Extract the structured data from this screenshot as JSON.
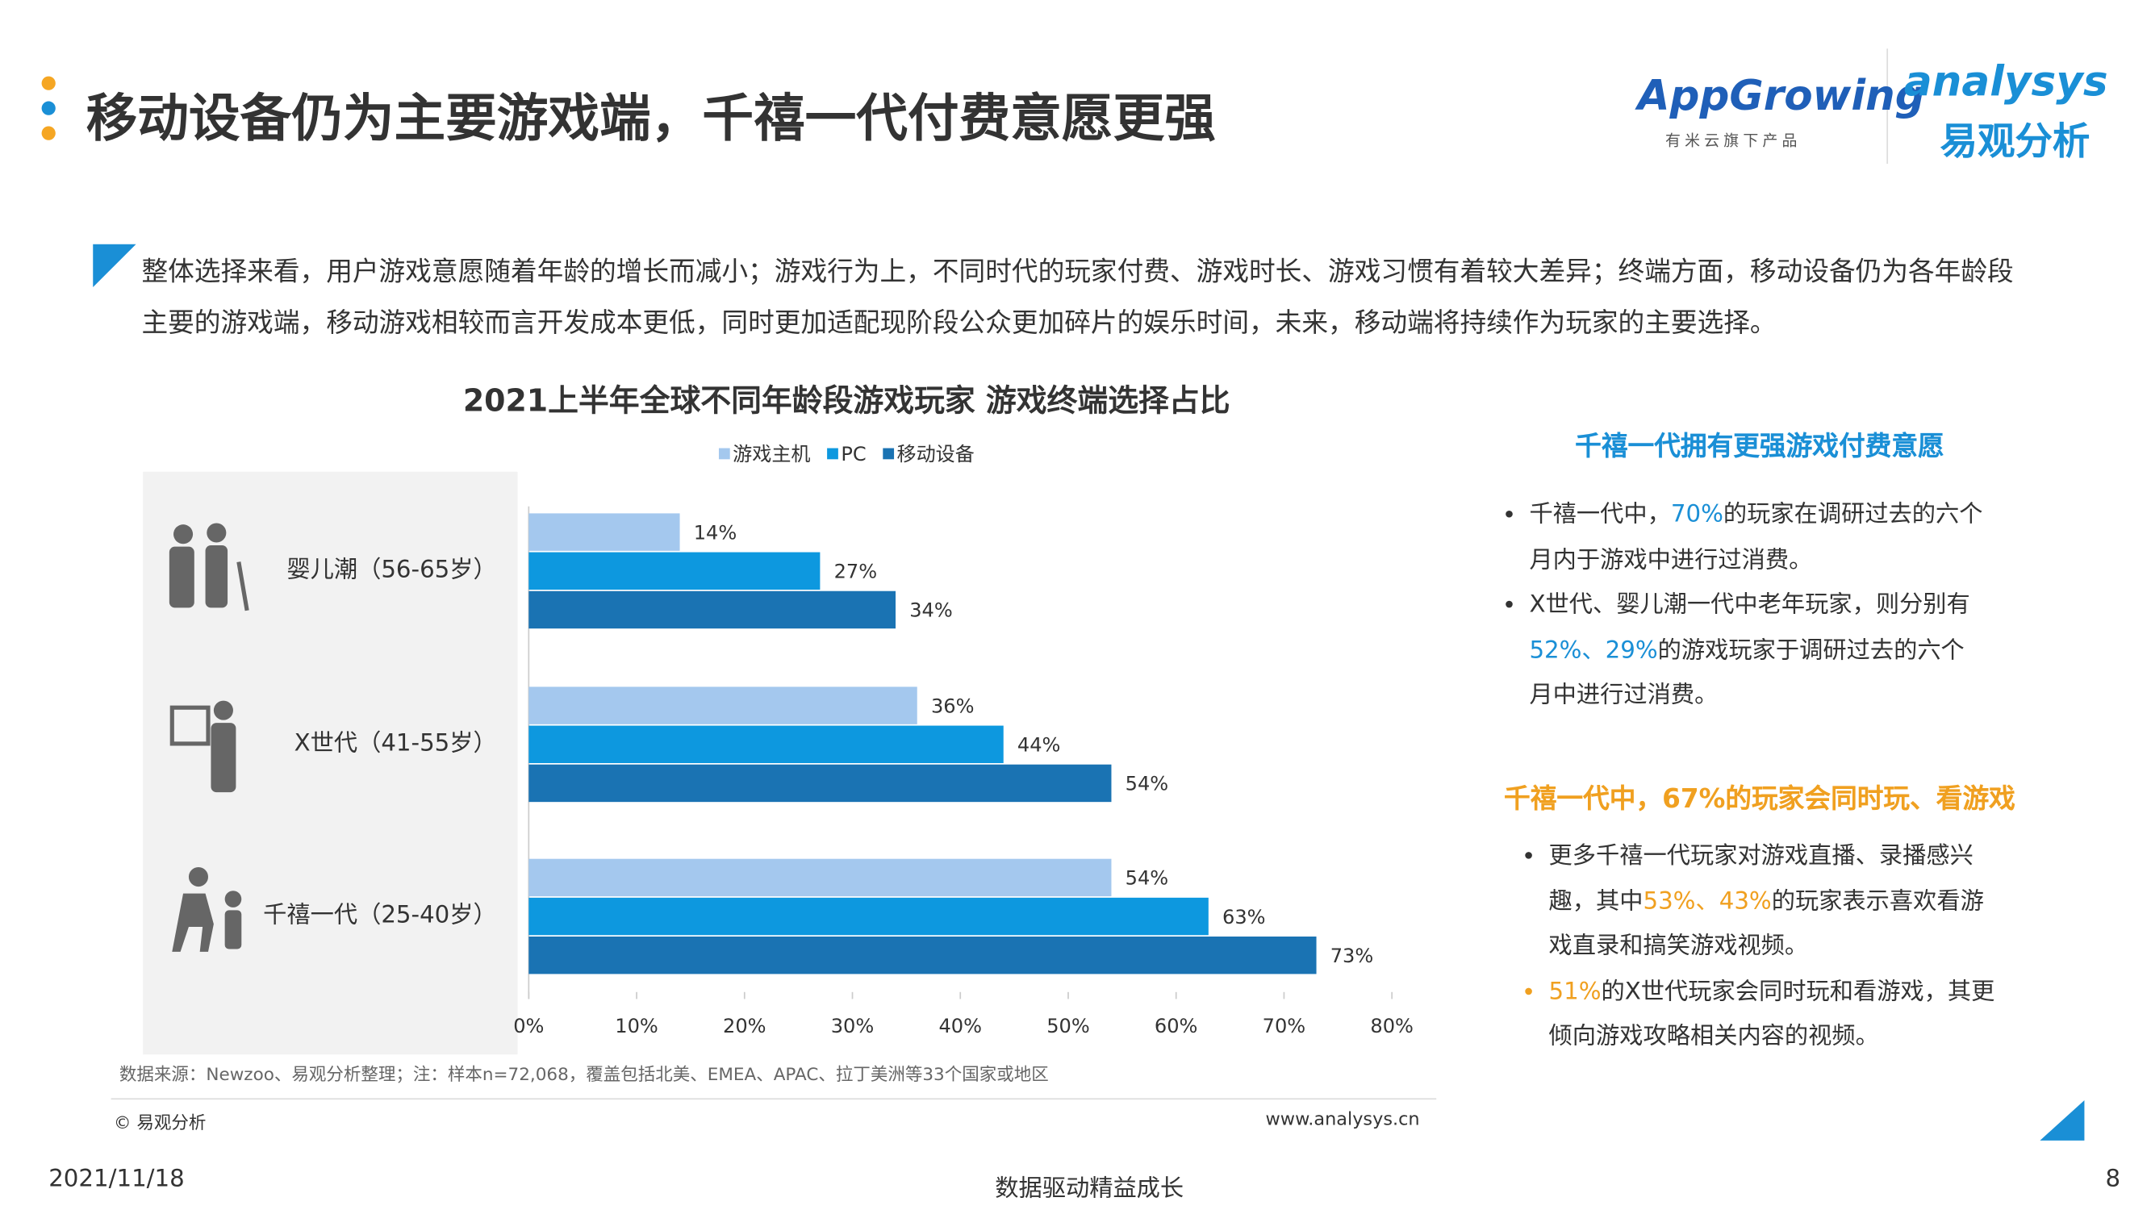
{
  "header": {
    "title": "移动设备仍为主要游戏端，千禧一代付费意愿更强",
    "logo1": "AppGrowing",
    "logo1_sub": "有米云旗下产品",
    "logo2": "analysys",
    "logo2_sub": "易观分析"
  },
  "intro": "整体选择来看，用户游戏意愿随着年龄的增长而减小；游戏行为上，不同时代的玩家付费、游戏时长、游戏习惯有着较大差异；终端方面，移动设备仍为各年龄段主要的游戏端，移动游戏相较而言开发成本更低，同时更加适配现阶段公众更加碎片的娱乐时间，未来，移动端将持续作为玩家的主要选择。",
  "chart_data": {
    "type": "bar",
    "orientation": "horizontal",
    "title": "2021上半年全球不同年龄段游戏玩家 游戏终端选择占比",
    "categories": [
      "婴儿潮（56-65岁）",
      "X世代（41-55岁）",
      "千禧一代（25-40岁）"
    ],
    "series": [
      {
        "name": "游戏主机",
        "color": "#a4c8ee",
        "values": [
          14,
          36,
          54
        ],
        "value_labels": [
          "14%",
          "36%",
          "54%"
        ]
      },
      {
        "name": "PC",
        "color": "#0d98df",
        "values": [
          27,
          44,
          63
        ],
        "value_labels": [
          "27%",
          "44%",
          "63%"
        ]
      },
      {
        "name": "移动设备",
        "color": "#1a73b3",
        "values": [
          34,
          54,
          73
        ],
        "value_labels": [
          "34%",
          "54%",
          "73%"
        ]
      }
    ],
    "xlim": [
      0,
      80
    ],
    "xticks": [
      {
        "value": 0,
        "label": "0%"
      },
      {
        "value": 10,
        "label": "10%"
      },
      {
        "value": 20,
        "label": "20%"
      },
      {
        "value": 30,
        "label": "30%"
      },
      {
        "value": 40,
        "label": "40%"
      },
      {
        "value": 50,
        "label": "50%"
      },
      {
        "value": 60,
        "label": "60%"
      },
      {
        "value": 70,
        "label": "70%"
      },
      {
        "value": 80,
        "label": "80%"
      }
    ],
    "legend": "top",
    "source": "数据来源：Newzoo、易观分析整理；注：样本n=72,068，覆盖包括北美、EMEA、APAC、拉丁美洲等33个国家或地区",
    "copyright": "© 易观分析",
    "website": "www.analysys.cn"
  },
  "side": {
    "heading1": "千禧一代拥有更强游戏付费意愿",
    "bullets1": [
      [
        {
          "text": "千禧一代中，"
        },
        {
          "text": "70%",
          "color": "#1a8fd6"
        },
        {
          "text": "的玩家在调研过去的六个月内于游戏中进行过消费。"
        }
      ],
      [
        {
          "text": "X世代、婴儿潮一代中老年玩家，则分别有"
        },
        {
          "text": "52%、29%",
          "color": "#1a8fd6"
        },
        {
          "text": "的游戏玩家于调研过去的六个月中进行过消费。"
        }
      ]
    ],
    "heading2": "千禧一代中，67%的玩家会同时玩、看游戏",
    "bullets2": [
      [
        {
          "text": "更多千禧一代玩家对游戏直播、录播感兴趣，其中"
        },
        {
          "text": "53%、43%",
          "color": "#f0a020"
        },
        {
          "text": "的玩家表示喜欢看游戏直录和搞笑游戏视频。"
        }
      ],
      [
        {
          "text": "51%",
          "color": "#f0a020"
        },
        {
          "text": "的X世代玩家会同时玩和看游戏，其更倾向游戏攻略相关内容的视频。"
        }
      ]
    ]
  },
  "footer": {
    "date": "2021/11/18",
    "slogan": "数据驱动精益成长",
    "page": "8"
  }
}
